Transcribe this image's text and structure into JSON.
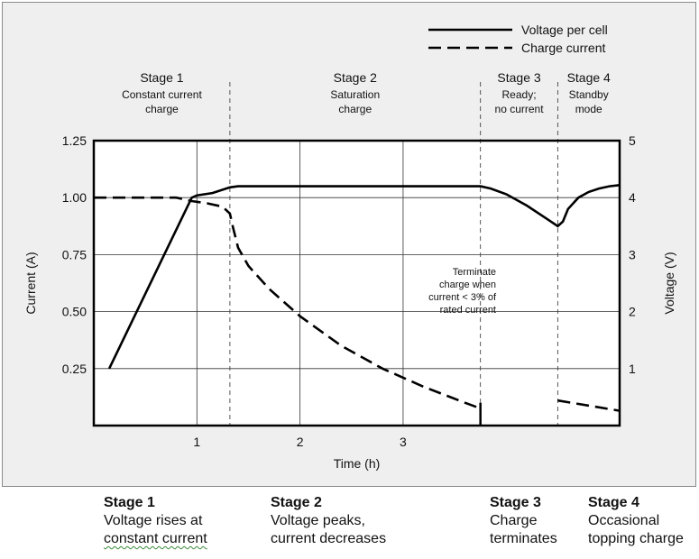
{
  "chart_data": {
    "type": "line",
    "title": "",
    "xlabel": "Time (h)",
    "ylabel_left": "Current (A)",
    "ylabel_right": "Voltage (V)",
    "xlim": [
      0,
      5.1
    ],
    "ylim_left": [
      0,
      1.25
    ],
    "ylim_right": [
      0,
      5
    ],
    "x_ticks": [
      1,
      2,
      3
    ],
    "y_ticks_left": [
      "0.25",
      "0.50",
      "0.75",
      "1.00",
      "1.25"
    ],
    "y_ticks_right": [
      "1",
      "2",
      "3",
      "4",
      "5"
    ],
    "grid": true,
    "legend_position": "top-right",
    "series": [
      {
        "name": "Voltage per cell",
        "axis": "right",
        "style": "solid",
        "x": [
          0.15,
          0.95,
          1.0,
          1.15,
          1.32,
          1.4,
          2.0,
          3.0,
          3.75,
          3.85,
          4.0,
          4.2,
          4.4,
          4.5,
          4.55,
          4.6,
          4.7,
          4.8,
          4.9,
          5.0,
          5.1
        ],
        "values": [
          1.0,
          4.0,
          4.04,
          4.08,
          4.18,
          4.2,
          4.2,
          4.2,
          4.2,
          4.16,
          4.06,
          3.86,
          3.62,
          3.5,
          3.58,
          3.8,
          4.0,
          4.1,
          4.16,
          4.2,
          4.22
        ]
      },
      {
        "name": "Charge current",
        "axis": "left",
        "style": "dashed",
        "x": [
          0.0,
          0.8,
          0.95,
          1.1,
          1.25,
          1.32,
          1.35,
          1.4,
          1.5,
          1.7,
          2.0,
          2.4,
          2.8,
          3.2,
          3.6,
          3.75,
          4.5,
          5.1
        ],
        "values": [
          1.0,
          1.0,
          0.985,
          0.975,
          0.96,
          0.93,
          0.87,
          0.78,
          0.7,
          0.6,
          0.48,
          0.35,
          0.25,
          0.17,
          0.1,
          0.075,
          0.11,
          0.065
        ]
      }
    ],
    "stages": [
      {
        "x_start": 0.0,
        "x_end": 1.32,
        "title": "Stage 1",
        "line1": "Constant current",
        "line2": "charge"
      },
      {
        "x_start": 1.32,
        "x_end": 3.75,
        "title": "Stage 2",
        "line1": "Saturation",
        "line2": "charge"
      },
      {
        "x_start": 3.75,
        "x_end": 4.5,
        "title": "Stage 3",
        "line1": "Ready;",
        "line2": "no current"
      },
      {
        "x_start": 4.5,
        "x_end": 5.1,
        "title": "Stage 4",
        "line1": "Standby",
        "line2": "mode"
      }
    ],
    "stage_boundaries": [
      1.32,
      3.75,
      4.5
    ],
    "annotation": [
      "Terminate",
      "charge when",
      "current < 3% of",
      "rated current"
    ]
  },
  "captions": [
    {
      "title": "Stage 1",
      "line1": "Voltage rises at",
      "line2": "constant current"
    },
    {
      "title": "Stage 2",
      "line1": "Voltage peaks,",
      "line2": "current decreases"
    },
    {
      "title": "Stage 3",
      "line1": "Charge",
      "line2": "terminates"
    },
    {
      "title": "Stage 4",
      "line1": "Occasional",
      "line2": "topping charge"
    }
  ]
}
